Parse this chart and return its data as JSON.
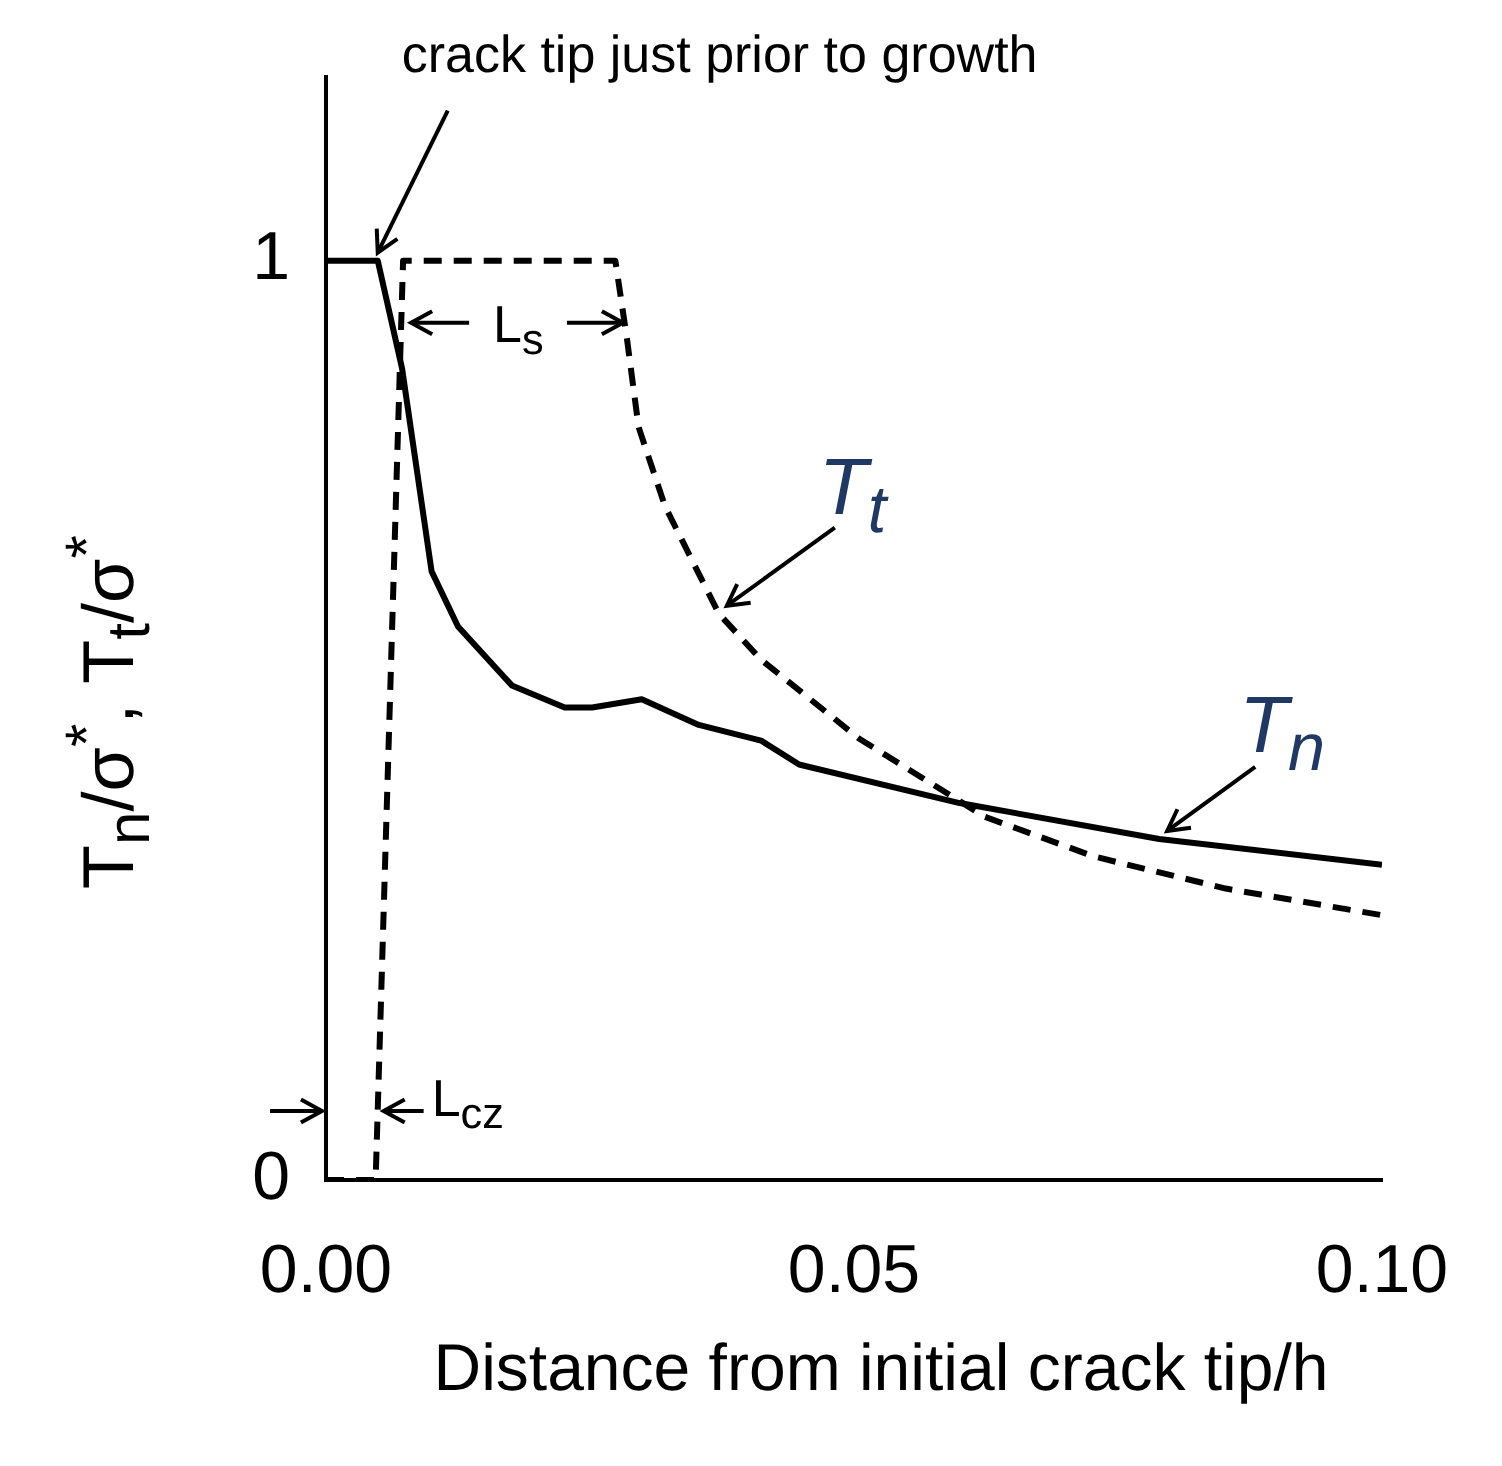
{
  "chart_data": {
    "type": "line",
    "xlabel": "Distance from initial crack tip/h",
    "ylabel": "T$_{n}$/σ$^{*}$, T$_{t}$/σ$^{*}$",
    "xlim": [
      0,
      0.1
    ],
    "xticks": [
      {
        "value": 0,
        "label": "0.00"
      },
      {
        "value": 0.05,
        "label": "0.05"
      },
      {
        "value": 0.1,
        "label": "0.10"
      }
    ],
    "ylim": [
      0,
      1.2
    ],
    "yticks": [
      0,
      1
    ],
    "grid": false,
    "legend": false,
    "marker": "none",
    "series": [
      {
        "name": "T$_{n}$",
        "color": "#000000",
        "line_style": "solid",
        "x": [
          0,
          0.0049,
          0.0072,
          0.01,
          0.0125,
          0.0176,
          0.0226,
          0.0252,
          0.0299,
          0.0353,
          0.0412,
          0.0448,
          0.06,
          0.0789,
          0.1
        ],
        "values": [
          1,
          1,
          0.883,
          0.662,
          0.602,
          0.538,
          0.514,
          0.514,
          0.523,
          0.495,
          0.478,
          0.452,
          0.41,
          0.371,
          0.343
        ]
      },
      {
        "name": "T$_{t}$",
        "color": "#000000",
        "line_style": "dashed",
        "x": [
          0,
          0.0047,
          0.0073,
          0.0274,
          0.0285,
          0.0296,
          0.0321,
          0.0372,
          0.0412,
          0.0505,
          0.0624,
          0.0727,
          0.0852,
          0.1
        ],
        "values": [
          0,
          0,
          1,
          1,
          0.915,
          0.819,
          0.733,
          0.616,
          0.566,
          0.48,
          0.395,
          0.352,
          0.317,
          0.288
        ]
      }
    ],
    "annotations": [
      {
        "text": "crack tip just prior to growth",
        "x": 0.0049,
        "y": 1
      },
      {
        "text": "L$_{s}$",
        "x": 0.0285,
        "y": 0.915
      },
      {
        "text": "L$_{cz}$",
        "x": 0.0047,
        "y": 0.075
      }
    ]
  }
}
